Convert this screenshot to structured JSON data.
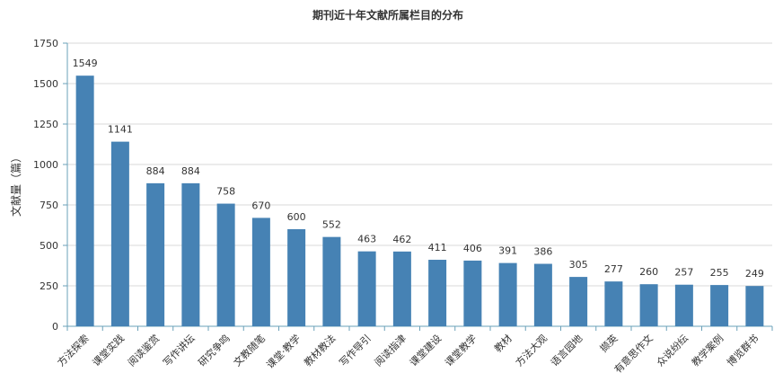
{
  "chart_data": {
    "type": "bar",
    "title": "期刊近十年文献所属栏目的分布",
    "xlabel": "",
    "ylabel": "文献量（篇）",
    "ylim": [
      0,
      1750
    ],
    "yticks": [
      0,
      250,
      500,
      750,
      1000,
      1250,
      1500,
      1750
    ],
    "grid": true,
    "bar_color": "#4682b4",
    "categories": [
      "方法探索",
      "课堂实践",
      "阅读鉴赏",
      "写作讲坛",
      "研究争鸣",
      "文教随笔",
      "课堂·教学",
      "教材教法",
      "写作导引",
      "阅读指津",
      "课堂建设",
      "课堂教学",
      "教材",
      "方法大观",
      "语言园地",
      "撷英",
      "有意思作文",
      "众说纷纭",
      "教学案例",
      "博览群书"
    ],
    "values": [
      1549,
      1141,
      884,
      884,
      758,
      670,
      600,
      552,
      463,
      462,
      411,
      406,
      391,
      386,
      305,
      277,
      260,
      257,
      255,
      249
    ]
  }
}
